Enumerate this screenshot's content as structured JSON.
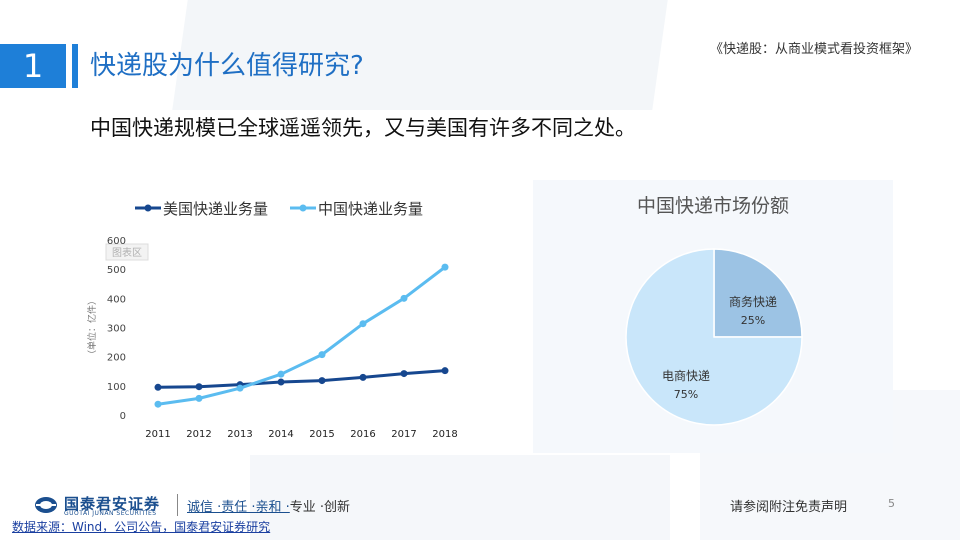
{
  "header": {
    "section_number": "1",
    "title": "快递股为什么值得研究?",
    "reference": "《快递股：从商业模式看投资框架》"
  },
  "subtitle": "中国快递规模已全球遥遥领先，又与美国有许多不同之处。",
  "chart_data": [
    {
      "type": "line",
      "title": "",
      "xlabel": "",
      "ylabel": "（单位：亿件）",
      "categories": [
        "2011",
        "2012",
        "2013",
        "2014",
        "2015",
        "2016",
        "2017",
        "2018"
      ],
      "yticks": [
        "0",
        "100",
        "200",
        "300",
        "400",
        "500",
        "600"
      ],
      "ylim": [
        0,
        600
      ],
      "legend_position": "top",
      "grid": false,
      "overlay_text": "图表区",
      "series": [
        {
          "name": "美国快递业务量",
          "color": "#16478f",
          "values": [
            95,
            97,
            104,
            113,
            118,
            129,
            142,
            152
          ]
        },
        {
          "name": "中国快递业务量",
          "color": "#5bbcf0",
          "values": [
            37,
            57,
            92,
            140,
            207,
            313,
            400,
            507
          ]
        }
      ]
    },
    {
      "type": "pie",
      "title": "中国快递市场份额",
      "slices": [
        {
          "label": "商务快递",
          "value": 25,
          "value_label": "25%",
          "color": "#9cc3e4"
        },
        {
          "label": "电商快递",
          "value": 75,
          "value_label": "75%",
          "color": "#c9e6fa"
        }
      ]
    }
  ],
  "footer": {
    "brand": "国泰君安证券",
    "brand_en": "GUOTAI JUNAN SECURITIES",
    "motto_underlined": "诚信 ·责任 ·亲和 ·",
    "motto_rest": "专业 ·创新",
    "disclaimer": "请参阅附注免责声明",
    "page": "5",
    "source": "数据来源：Wind，公司公告，国泰君安证券研究"
  }
}
